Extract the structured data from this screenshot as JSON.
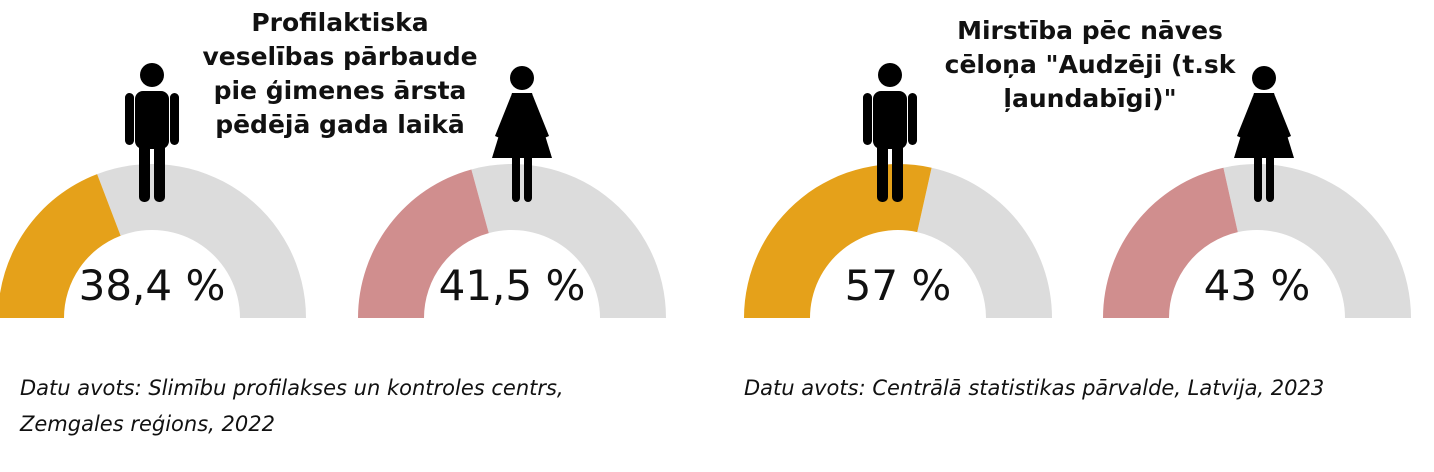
{
  "colors": {
    "male": "#E5A11A",
    "female": "#D08E8E",
    "remainder": "#DCDCDC",
    "text": "#111111",
    "icon": "#000000"
  },
  "left_panel": {
    "title_lines": [
      "Profilaktiska",
      "veselības pārbaude",
      "pie ģimenes ārsta",
      "pēdējā gada laikā"
    ],
    "source_lines": [
      "Datu avots: Slimību profilakses un kontroles centrs,",
      "Zemgales reģions, 2022"
    ]
  },
  "right_panel": {
    "title_lines": [
      "Mirstība pēc nāves",
      "cēloņa \"Audzēji (t.sk",
      "ļaundabīgi)\""
    ],
    "source_lines": [
      "Datu avots: Centrālā statistikas pārvalde, Latvija, 2023"
    ]
  },
  "chart_data": [
    {
      "type": "pie",
      "variant": "half-donut gauge",
      "group": "Profilaktiska veselības pārbaude pie ģimenes ārsta pēdējā gada laikā",
      "icon": "male-figure-icon",
      "value": 38.4,
      "max": 100,
      "label": "38,4 %",
      "color": "#E5A11A"
    },
    {
      "type": "pie",
      "variant": "half-donut gauge",
      "group": "Profilaktiska veselības pārbaude pie ģimenes ārsta pēdējā gada laikā",
      "icon": "female-figure-icon",
      "value": 41.5,
      "max": 100,
      "label": "41,5 %",
      "color": "#D08E8E"
    },
    {
      "type": "pie",
      "variant": "half-donut gauge",
      "group": "Mirstība pēc nāves cēloņa \"Audzēji (t.sk ļaundabīgi)\"",
      "icon": "male-figure-icon",
      "value": 57,
      "max": 100,
      "label": "57 %",
      "color": "#E5A11A"
    },
    {
      "type": "pie",
      "variant": "half-donut gauge",
      "group": "Mirstība pēc nāves cēloņa \"Audzēji (t.sk ļaundabīgi)\"",
      "icon": "female-figure-icon",
      "value": 43,
      "max": 100,
      "label": "43 %",
      "color": "#D08E8E"
    }
  ]
}
